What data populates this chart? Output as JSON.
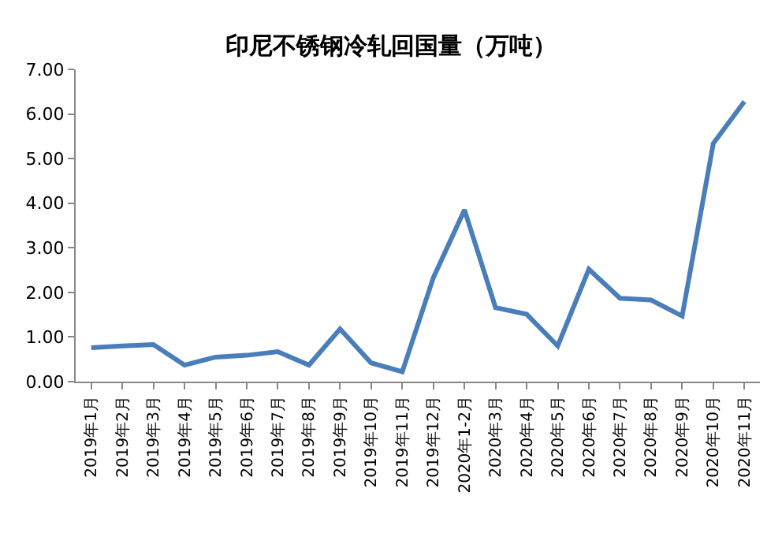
{
  "chart_data": {
    "type": "line",
    "title": "印尼不锈钢冷轧回国量（万吨）",
    "categories": [
      "2019年1月",
      "2019年2月",
      "2019年3月",
      "2019年4月",
      "2019年5月",
      "2019年6月",
      "2019年7月",
      "2019年8月",
      "2019年9月",
      "2019年10月",
      "2019年11月",
      "2019年12月",
      "2020年1-2月",
      "2020年3月",
      "2020年4月",
      "2020年5月",
      "2020年6月",
      "2020年7月",
      "2020年8月",
      "2020年9月",
      "2020年10月",
      "2020年11月"
    ],
    "series": [
      {
        "color": "#4a7ebb",
        "values": [
          0.76,
          0.8,
          0.83,
          0.37,
          0.55,
          0.59,
          0.67,
          0.37,
          1.18,
          0.42,
          0.22,
          2.33,
          3.85,
          1.66,
          1.51,
          0.8,
          2.52,
          1.87,
          1.83,
          1.47,
          5.34,
          6.28
        ]
      }
    ],
    "ylim": [
      0,
      7
    ],
    "yticks": [
      {
        "value": 0,
        "label": "0.00"
      },
      {
        "value": 1,
        "label": "1.00"
      },
      {
        "value": 2,
        "label": "2.00"
      },
      {
        "value": 3,
        "label": "3.00"
      },
      {
        "value": 4,
        "label": "4.00"
      },
      {
        "value": 5,
        "label": "5.00"
      },
      {
        "value": 6,
        "label": "6.00"
      },
      {
        "value": 7,
        "label": "7.00"
      }
    ],
    "marker": "none",
    "line_style": "solid"
  }
}
